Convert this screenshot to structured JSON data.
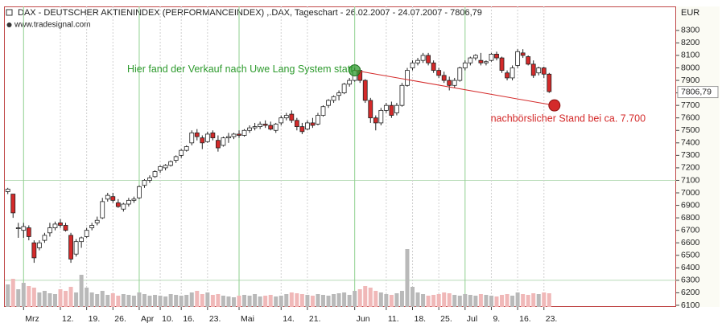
{
  "chart_data": {
    "type": "candlestick",
    "title": "DAX  - DEUTSCHER AKTIENINDEX (PERFORMANCEINDEX) ,.DAX, Tageschart - 26.02.2007 - 24.07.2007 - 7806,79",
    "subtitle": "www.tradesignal.com",
    "currency": "EUR",
    "categories": [
      null,
      null,
      null,
      "Mrz",
      null,
      null,
      null,
      null,
      null,
      null,
      "12.",
      null,
      null,
      null,
      null,
      "19.",
      null,
      null,
      null,
      null,
      "26.",
      null,
      null,
      null,
      null,
      "Apr",
      null,
      null,
      null,
      "10.",
      null,
      null,
      null,
      "16.",
      null,
      null,
      null,
      null,
      "23.",
      null,
      null,
      null,
      null,
      null,
      "Mai",
      null,
      null,
      null,
      null,
      null,
      null,
      null,
      "14.",
      null,
      null,
      null,
      null,
      "21.",
      null,
      null,
      null,
      null,
      null,
      null,
      null,
      null,
      "Jun",
      null,
      null,
      null,
      null,
      null,
      "11.",
      null,
      null,
      null,
      null,
      "18.",
      null,
      null,
      null,
      null,
      "25.",
      null,
      null,
      null,
      null,
      "Jul",
      null,
      null,
      null,
      null,
      "9.",
      null,
      null,
      null,
      null,
      "16.",
      null,
      null,
      null,
      null,
      "23.",
      null
    ],
    "open": [
      7010,
      6990,
      6720,
      6700,
      6720,
      6600,
      6560,
      6620,
      6680,
      6720,
      6760,
      6740,
      6660,
      6510,
      6610,
      6650,
      6720,
      6760,
      6800,
      6950,
      6970,
      6920,
      6870,
      6910,
      6940,
      6960,
      7060,
      7100,
      7130,
      7180,
      7200,
      7220,
      7260,
      7300,
      7340,
      7400,
      7480,
      7440,
      7410,
      7480,
      7420,
      7380,
      7440,
      7450,
      7470,
      7460,
      7500,
      7520,
      7530,
      7550,
      7540,
      7500,
      7560,
      7600,
      7630,
      7580,
      7530,
      7510,
      7560,
      7550,
      7620,
      7700,
      7740,
      7780,
      7800,
      7870,
      7900,
      7980,
      7900,
      7740,
      7600,
      7560,
      7660,
      7700,
      7640,
      7700,
      7860,
      8000,
      8040,
      8060,
      8100,
      8040,
      7980,
      7940,
      7900,
      7860,
      7900,
      8000,
      8040,
      8080,
      8060,
      8040,
      8060,
      8110,
      8080,
      7960,
      7920,
      8020,
      8120,
      8090,
      8030,
      7960,
      8000,
      7950
    ],
    "high": [
      7040,
      6990,
      6760,
      6760,
      6740,
      6620,
      6620,
      6680,
      6760,
      6770,
      6790,
      6760,
      6680,
      6630,
      6650,
      6720,
      6760,
      6810,
      6960,
      7000,
      7000,
      6950,
      6920,
      6960,
      6970,
      7060,
      7110,
      7140,
      7180,
      7220,
      7230,
      7260,
      7300,
      7350,
      7380,
      7500,
      7510,
      7460,
      7490,
      7500,
      7460,
      7450,
      7480,
      7480,
      7500,
      7510,
      7540,
      7560,
      7570,
      7580,
      7570,
      7560,
      7620,
      7640,
      7660,
      7600,
      7560,
      7580,
      7600,
      7640,
      7700,
      7750,
      7780,
      7820,
      7880,
      7920,
      8000,
      8000,
      7910,
      7760,
      7620,
      7680,
      7720,
      7730,
      7720,
      7880,
      8000,
      8060,
      8080,
      8120,
      8120,
      8060,
      8000,
      7970,
      7930,
      7920,
      8010,
      8060,
      8090,
      8110,
      8120,
      8060,
      8120,
      8130,
      8090,
      7980,
      8020,
      8150,
      8150,
      8100,
      8060,
      8010,
      8010,
      7960
    ],
    "low": [
      6990,
      6800,
      6640,
      6640,
      6620,
      6440,
      6540,
      6600,
      6650,
      6700,
      6720,
      6690,
      6440,
      6490,
      6560,
      6640,
      6700,
      6740,
      6790,
      6930,
      6920,
      6880,
      6850,
      6890,
      6920,
      6950,
      7040,
      7080,
      7120,
      7160,
      7180,
      7210,
      7240,
      7280,
      7330,
      7380,
      7420,
      7350,
      7400,
      7420,
      7330,
      7370,
      7400,
      7430,
      7440,
      7450,
      7480,
      7500,
      7510,
      7520,
      7500,
      7480,
      7540,
      7580,
      7560,
      7500,
      7470,
      7500,
      7520,
      7540,
      7610,
      7680,
      7720,
      7740,
      7790,
      7850,
      7890,
      7880,
      7720,
      7560,
      7500,
      7540,
      7640,
      7600,
      7620,
      7690,
      7850,
      7980,
      8020,
      8040,
      8020,
      7960,
      7920,
      7880,
      7820,
      7840,
      7890,
      7980,
      8020,
      8060,
      8020,
      8020,
      8050,
      8060,
      7960,
      7900,
      7900,
      8000,
      8080,
      8020,
      7920,
      7940,
      7920,
      7800
    ],
    "close": [
      7030,
      6840,
      6720,
      6730,
      6650,
      6480,
      6600,
      6660,
      6720,
      6750,
      6740,
      6700,
      6470,
      6610,
      6640,
      6700,
      6740,
      6780,
      6930,
      6980,
      6940,
      6890,
      6910,
      6940,
      6950,
      7050,
      7100,
      7120,
      7170,
      7210,
      7220,
      7250,
      7290,
      7340,
      7370,
      7480,
      7450,
      7400,
      7470,
      7440,
      7360,
      7440,
      7450,
      7470,
      7460,
      7500,
      7520,
      7530,
      7550,
      7540,
      7510,
      7550,
      7600,
      7620,
      7580,
      7530,
      7490,
      7560,
      7540,
      7620,
      7690,
      7740,
      7770,
      7800,
      7870,
      7900,
      7980,
      7900,
      7740,
      7600,
      7560,
      7660,
      7700,
      7620,
      7700,
      7860,
      7980,
      8040,
      8060,
      8100,
      8040,
      7980,
      7940,
      7900,
      7860,
      7900,
      8000,
      8040,
      8080,
      8100,
      8040,
      8050,
      8110,
      8080,
      7980,
      7920,
      8000,
      8130,
      8100,
      8030,
      7940,
      8000,
      7950,
      7810
    ],
    "volumes": [
      28,
      35,
      22,
      30,
      26,
      24,
      18,
      20,
      17,
      16,
      22,
      20,
      25,
      18,
      40,
      24,
      18,
      16,
      20,
      15,
      17,
      14,
      16,
      15,
      14,
      18,
      16,
      14,
      15,
      14,
      13,
      16,
      15,
      14,
      15,
      18,
      20,
      16,
      18,
      15,
      16,
      14,
      13,
      12,
      14,
      15,
      14,
      16,
      13,
      14,
      15,
      13,
      14,
      16,
      18,
      17,
      16,
      15,
      14,
      16,
      15,
      14,
      16,
      17,
      18,
      15,
      20,
      22,
      26,
      24,
      20,
      18,
      16,
      15,
      17,
      20,
      72,
      25,
      18,
      16,
      14,
      15,
      16,
      18,
      17,
      15,
      14,
      16,
      15,
      14,
      16,
      15,
      14,
      13,
      15,
      16,
      14,
      18,
      16,
      15,
      17,
      16,
      18,
      17
    ],
    "volume_lim": [
      0,
      100
    ],
    "up_color": "#ffffff",
    "down_color": "#d42a2a",
    "up_volume_color": "#b9b9b9",
    "down_volume_color": "#f0b8b8",
    "ylim": [
      6087,
      8492
    ],
    "yticks": [
      6100,
      6200,
      6300,
      6400,
      6500,
      6600,
      6700,
      6800,
      6900,
      7000,
      7100,
      7200,
      7300,
      7400,
      7500,
      7600,
      7700,
      7800,
      7900,
      8000,
      8100,
      8200,
      8300
    ],
    "last_price": {
      "value": 7806.79,
      "label": "7806,79"
    },
    "hlines": [
      7100,
      6300
    ],
    "annotations": [
      {
        "text": "Hier fand der Verkauf nach Uwe Lang System statt",
        "index": 66,
        "value": 7980,
        "color": "#2e9b2e"
      },
      {
        "text": "nachbörslicher Stand bei ca. 7.700",
        "index": 104,
        "value": 7700,
        "color": "#d42a2a"
      }
    ]
  }
}
